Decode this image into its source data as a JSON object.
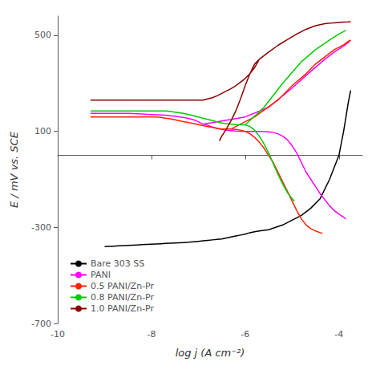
{
  "chart_data": {
    "type": "line",
    "xlabel": "log j (A cm⁻²)",
    "ylabel": "E / mV vs. SCE",
    "xlim": [
      -10,
      -3.5
    ],
    "ylim": [
      -700,
      580
    ],
    "xticks": [
      -10,
      -8,
      -6,
      -4
    ],
    "yticks": [
      -700,
      -300,
      100,
      500
    ],
    "grid": false,
    "legend": "lower left",
    "series": [
      {
        "name": "Bare 303 SS",
        "color": "#000000",
        "x": [
          -5.5,
          -5.6,
          -5.7,
          -5.8,
          -5.9,
          -6.0,
          -6.1,
          -6.2,
          -6.3,
          -6.4,
          -6.5,
          -6.6,
          -6.7,
          -6.8,
          -6.9,
          -7.0,
          -7.1,
          -7.2,
          -7.3,
          -7.4,
          -7.5,
          -7.6,
          -7.7,
          -7.8,
          -7.9,
          -8.0,
          -8.1,
          -8.2,
          -8.3,
          -8.4,
          -8.5,
          -8.6,
          -8.7,
          -8.8,
          -8.9,
          -9.0,
          null,
          -5.5,
          -5.2,
          -5.0,
          -4.8,
          -4.6,
          -4.4,
          -4.2,
          -4.0,
          -3.9,
          -3.8,
          -3.75
        ],
        "values": [
          -310,
          -312,
          -315,
          -318,
          -322,
          -328,
          -332,
          -336,
          -340,
          -344,
          -348,
          -350,
          -352,
          -354,
          -356,
          -358,
          -360,
          -362,
          -363,
          -364,
          -365,
          -366,
          -367,
          -368,
          -369,
          -370,
          -371,
          -372,
          -373,
          -374,
          -375,
          -376,
          -377,
          -378,
          -379,
          -380,
          null,
          -310,
          -290,
          -270,
          -250,
          -220,
          -180,
          -100,
          0,
          100,
          220,
          270
        ]
      },
      {
        "name": "PANI",
        "color": "#ff00ff",
        "x": [
          -9.3,
          -9.2,
          -9.1,
          -9.0,
          -8.9,
          -8.8,
          -8.7,
          -8.6,
          -8.5,
          null,
          -8.5,
          -8.4,
          -8.3,
          -8.2,
          -8.1,
          -8.0,
          -7.9,
          -7.8,
          -7.7,
          -7.6,
          -7.5,
          -7.4,
          -7.3,
          -7.2,
          -7.1,
          -7.0,
          -6.9,
          null,
          -6.9,
          -6.8,
          -6.7,
          -6.6,
          -6.5,
          -6.4,
          -6.3,
          -6.2,
          -6.1,
          -6.0,
          -5.9,
          -5.8,
          -5.7,
          -5.6,
          -5.5,
          -5.4,
          -5.3,
          -5.2,
          -5.1,
          -5.0,
          -4.9,
          -4.8,
          -4.7,
          -4.6,
          -4.5,
          -4.4,
          -4.3,
          -4.2,
          -4.1,
          -4.0,
          -3.9,
          -3.85,
          null,
          -6.9,
          -6.0,
          -5.5,
          -5.0,
          -4.6,
          -4.3,
          -4.1,
          -3.9,
          -3.8,
          -3.75
        ],
        "values": [
          175,
          175,
          175,
          175,
          175,
          175,
          175,
          175,
          175,
          null,
          175,
          174,
          173,
          172,
          171,
          170,
          169,
          168,
          167,
          165,
          163,
          160,
          157,
          153,
          148,
          140,
          130,
          null,
          130,
          125,
          118,
          112,
          108,
          105,
          103,
          101,
          100,
          100,
          100,
          100,
          100,
          99,
          98,
          95,
          90,
          80,
          65,
          40,
          10,
          -30,
          -70,
          -100,
          -130,
          -160,
          -185,
          -210,
          -230,
          -245,
          -258,
          -265,
          null,
          130,
          160,
          200,
          280,
          350,
          400,
          430,
          455,
          470,
          480
        ]
      },
      {
        "name": "0.5 PANI/Zn-Pr",
        "color": "#ff2200",
        "x": [
          -9.3,
          -9.2,
          -9.1,
          -9.0,
          -8.9,
          -8.8,
          -8.7,
          -8.6,
          -8.5,
          -8.4,
          -8.3,
          -8.2,
          -8.1,
          -8.0,
          -7.9,
          null,
          -7.9,
          -7.8,
          -7.7,
          -7.6,
          -7.5,
          -7.4,
          -7.3,
          -7.2,
          -7.1,
          -7.0,
          -6.9,
          -6.8,
          -6.7,
          -6.6,
          -6.5,
          -6.4,
          -6.3,
          null,
          -6.3,
          -6.2,
          -6.1,
          -6.0,
          -5.9,
          -5.8,
          -5.7,
          -5.6,
          -5.5,
          -5.4,
          -5.3,
          -5.2,
          -5.1,
          -5.0,
          -4.9,
          -4.8,
          -4.7,
          -4.6,
          -4.5,
          -4.4,
          -4.35,
          null,
          -6.3,
          -5.8,
          -5.3,
          -5.0,
          -4.7,
          -4.5,
          -4.3,
          -4.1,
          -3.9,
          -3.8,
          -3.75
        ],
        "values": [
          160,
          160,
          160,
          160,
          160,
          160,
          160,
          160,
          160,
          160,
          160,
          160,
          160,
          160,
          160,
          null,
          160,
          158,
          155,
          152,
          148,
          144,
          140,
          136,
          132,
          128,
          124,
          120,
          116,
          112,
          110,
          110,
          110,
          null,
          110,
          108,
          105,
          100,
          90,
          75,
          55,
          30,
          0,
          -30,
          -70,
          -110,
          -150,
          -190,
          -230,
          -265,
          -290,
          -305,
          -315,
          -322,
          -325,
          null,
          110,
          160,
          230,
          290,
          340,
          380,
          410,
          440,
          460,
          475,
          480
        ]
      },
      {
        "name": "0.8 PANI/Zn-Pr",
        "color": "#00cc00",
        "x": [
          -9.3,
          -9.2,
          -9.1,
          -9.0,
          -8.9,
          -8.8,
          -8.7,
          -8.6,
          -8.5,
          -8.4,
          -8.3,
          -8.2,
          -8.1,
          -8.0,
          -7.9,
          -7.8,
          -7.7,
          null,
          -7.7,
          -7.6,
          -7.5,
          -7.4,
          -7.3,
          -7.2,
          -7.1,
          -7.0,
          -6.9,
          -6.8,
          -6.7,
          -6.6,
          -6.5,
          -6.4,
          -6.3,
          -6.2,
          -6.1,
          -6.0,
          null,
          -6.0,
          -5.9,
          -5.8,
          -5.7,
          -5.6,
          -5.5,
          -5.4,
          -5.3,
          -5.2,
          -5.1,
          -5.0,
          -4.95,
          null,
          -6.0,
          -5.6,
          -5.2,
          -4.8,
          -4.5,
          -4.2,
          -4.0,
          -3.85
        ],
        "values": [
          185,
          185,
          185,
          185,
          185,
          185,
          185,
          185,
          185,
          185,
          185,
          185,
          185,
          185,
          185,
          185,
          185,
          null,
          185,
          183,
          180,
          177,
          174,
          170,
          165,
          160,
          155,
          150,
          145,
          140,
          135,
          132,
          130,
          128,
          127,
          127,
          null,
          127,
          120,
          105,
          80,
          48,
          10,
          -35,
          -80,
          -120,
          -155,
          -180,
          -190,
          null,
          127,
          200,
          300,
          390,
          440,
          480,
          505,
          520
        ]
      },
      {
        "name": "1.0 PANI/Zn-Pr",
        "color": "#8b0000",
        "x": [
          -9.3,
          -9.2,
          -9.1,
          -9.0,
          -8.9,
          -8.8,
          -8.7,
          -8.6,
          -8.5,
          -8.4,
          -8.3,
          -8.2,
          -8.1,
          -8.0,
          -7.9,
          -7.8,
          -7.7,
          -7.6,
          -7.5,
          -7.4,
          -7.3,
          -7.2,
          -7.1,
          -7.0,
          null,
          -7.0,
          -6.9,
          -6.8,
          -6.7,
          -6.6,
          -6.5,
          -6.4,
          -6.3,
          -6.2,
          -6.1,
          -6.0,
          -5.9,
          -5.8,
          -5.7,
          null,
          -5.7,
          -5.8,
          -5.9,
          -6.0,
          -6.1,
          -6.2,
          -6.3,
          -6.4,
          -6.5,
          -6.55,
          null,
          -5.7,
          -5.5,
          -5.3,
          -5.1,
          -4.9,
          -4.7,
          -4.5,
          -4.3,
          -4.1,
          -3.9,
          -3.8,
          -3.75
        ],
        "values": [
          230,
          230,
          230,
          230,
          230,
          230,
          230,
          230,
          230,
          230,
          230,
          230,
          230,
          230,
          230,
          230,
          230,
          230,
          230,
          230,
          230,
          230,
          230,
          230,
          null,
          230,
          230,
          235,
          240,
          248,
          258,
          268,
          278,
          290,
          305,
          320,
          340,
          365,
          400,
          null,
          400,
          380,
          340,
          290,
          235,
          185,
          145,
          110,
          80,
          60,
          null,
          400,
          430,
          458,
          482,
          505,
          525,
          540,
          548,
          552,
          555,
          556,
          557
        ]
      }
    ]
  }
}
